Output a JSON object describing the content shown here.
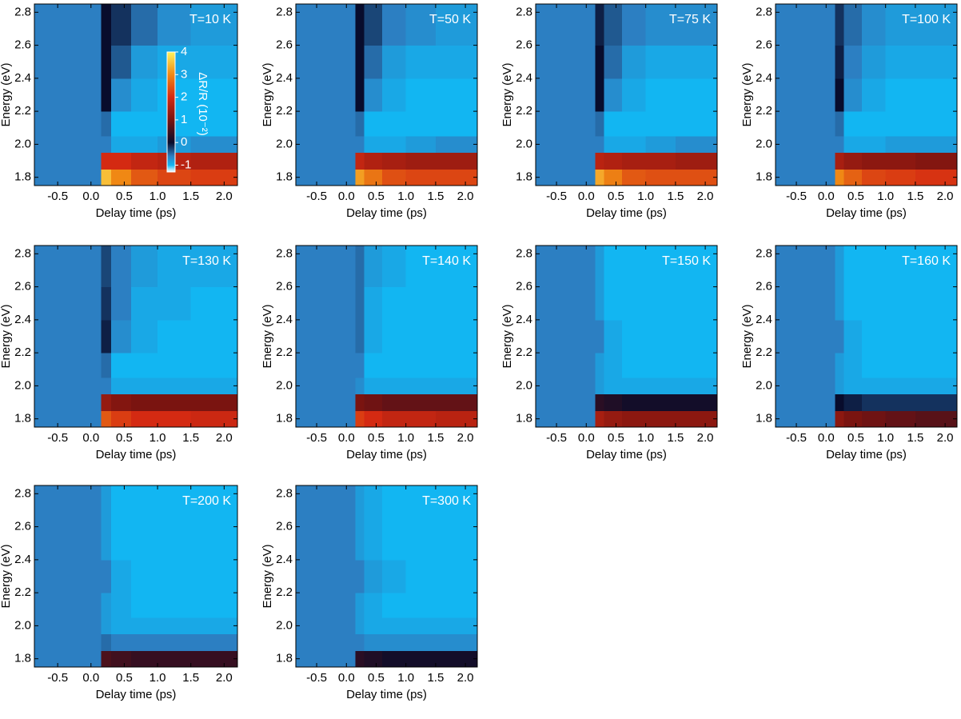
{
  "chart_data": [
    {
      "type": "heatmap",
      "title": "T=10 K",
      "xlabel": "Delay time (ps)",
      "ylabel": "Energy (eV)",
      "xlim": [
        -0.85,
        2.2
      ],
      "ylim": [
        1.75,
        2.85
      ],
      "xticks": [
        -0.5,
        {
          "value": 0,
          "label": "0.0"
        },
        0.5,
        {
          "value": 1,
          "label": "1.0"
        },
        1.5,
        {
          "value": 2,
          "label": "2.0"
        }
      ],
      "yticks": [
        1.8,
        {
          "value": 2,
          "label": "2.0"
        },
        2.2,
        2.4,
        2.6,
        2.8
      ],
      "xbins": [
        -0.85,
        0.15,
        0.3,
        0.6,
        1.0,
        1.5,
        2.2
      ],
      "ybins": [
        1.75,
        1.85,
        1.95,
        2.05,
        2.2,
        2.4,
        2.6,
        2.85
      ],
      "values": [
        [
          -0.6,
          3.5,
          3,
          2.5,
          2.3,
          2.2
        ],
        [
          -0.6,
          2,
          2,
          1.8,
          1.7,
          1.6
        ],
        [
          -0.6,
          -0.6,
          -0.9,
          -0.9,
          -0.8,
          -0.7
        ],
        [
          -0.6,
          -0.5,
          -1,
          -1,
          -1,
          -1
        ],
        [
          -0.6,
          0,
          -0.7,
          -0.9,
          -1,
          -1
        ],
        [
          -0.6,
          0,
          -0.4,
          -0.8,
          -0.9,
          -0.9
        ],
        [
          -0.6,
          0,
          -0.2,
          -0.5,
          -0.7,
          -0.8
        ]
      ],
      "colorbar_label": "ΔR/R (10⁻²)",
      "zlim": [
        -1.3,
        4
      ],
      "zticks": [
        -1,
        0,
        1,
        2,
        3,
        4
      ],
      "colorscale": [
        [
          -1.3,
          "#ffffff"
        ],
        [
          -1,
          "#12b6f2"
        ],
        [
          -0.6,
          "#2c7fc2"
        ],
        [
          0,
          "#080c2c"
        ],
        [
          1,
          "#7a1410"
        ],
        [
          2,
          "#d42a12"
        ],
        [
          3,
          "#f08814"
        ],
        [
          4,
          "#fff45c"
        ]
      ]
    },
    {
      "type": "heatmap",
      "title": "T=50 K",
      "xlabel": "Delay time (ps)",
      "ylabel": "Energy (eV)",
      "xlim": [
        -0.85,
        2.2
      ],
      "ylim": [
        1.75,
        2.85
      ],
      "xticks": [
        -0.5,
        {
          "value": 0,
          "label": "0.0"
        },
        0.5,
        {
          "value": 1,
          "label": "1.0"
        },
        1.5,
        {
          "value": 2,
          "label": "2.0"
        }
      ],
      "yticks": [
        1.8,
        {
          "value": 2,
          "label": "2.0"
        },
        2.2,
        2.4,
        2.6,
        2.8
      ],
      "xbins": [
        -0.85,
        0.15,
        0.3,
        0.6,
        1.0,
        1.5,
        2.2
      ],
      "ybins": [
        1.75,
        1.85,
        1.95,
        2.05,
        2.2,
        2.4,
        2.6,
        2.85
      ],
      "values": [
        [
          -0.6,
          3.2,
          2.8,
          2.4,
          2.3,
          2.3
        ],
        [
          -0.6,
          1.8,
          1.6,
          1.5,
          1.4,
          1.4
        ],
        [
          -0.6,
          -0.6,
          -0.9,
          -0.9,
          -0.8,
          -0.7
        ],
        [
          -0.6,
          -0.5,
          -1,
          -1,
          -1,
          -1
        ],
        [
          -0.6,
          0,
          -0.7,
          -0.9,
          -1,
          -1
        ],
        [
          -0.6,
          0,
          -0.5,
          -0.8,
          -0.9,
          -0.9
        ],
        [
          -0.6,
          0,
          -0.3,
          -0.6,
          -0.7,
          -0.8
        ]
      ]
    },
    {
      "type": "heatmap",
      "title": "T=75 K",
      "xlabel": "Delay time (ps)",
      "ylabel": "Energy (eV)",
      "xlim": [
        -0.85,
        2.2
      ],
      "ylim": [
        1.75,
        2.85
      ],
      "xticks": [
        -0.5,
        {
          "value": 0,
          "label": "0.0"
        },
        0.5,
        {
          "value": 1,
          "label": "1.0"
        },
        1.5,
        {
          "value": 2,
          "label": "2.0"
        }
      ],
      "yticks": [
        1.8,
        {
          "value": 2,
          "label": "2.0"
        },
        2.2,
        2.4,
        2.6,
        2.8
      ],
      "xbins": [
        -0.85,
        0.15,
        0.3,
        0.6,
        1.0,
        1.5,
        2.2
      ],
      "ybins": [
        1.75,
        1.85,
        1.95,
        2.05,
        2.2,
        2.4,
        2.6,
        2.85
      ],
      "values": [
        [
          -0.6,
          3.3,
          2.9,
          2.5,
          2.4,
          2.4
        ],
        [
          -0.6,
          1.7,
          1.6,
          1.5,
          1.5,
          1.4
        ],
        [
          -0.6,
          -0.6,
          -0.9,
          -0.9,
          -0.8,
          -0.7
        ],
        [
          -0.6,
          -0.5,
          -1,
          -1,
          -1,
          -1
        ],
        [
          -0.6,
          0,
          -0.7,
          -0.9,
          -1,
          -1
        ],
        [
          -0.6,
          0,
          -0.5,
          -0.8,
          -0.9,
          -0.9
        ],
        [
          -0.6,
          -0.1,
          -0.4,
          -0.6,
          -0.7,
          -0.7
        ]
      ]
    },
    {
      "type": "heatmap",
      "title": "T=100 K",
      "xlabel": "Delay time (ps)",
      "ylabel": "Energy (eV)",
      "xlim": [
        -0.85,
        2.2
      ],
      "ylim": [
        1.75,
        2.85
      ],
      "xticks": [
        -0.5,
        {
          "value": 0,
          "label": "0.0"
        },
        0.5,
        {
          "value": 1,
          "label": "1.0"
        },
        1.5,
        {
          "value": 2,
          "label": "2.0"
        }
      ],
      "yticks": [
        1.8,
        {
          "value": 2,
          "label": "2.0"
        },
        2.2,
        2.4,
        2.6,
        2.8
      ],
      "xbins": [
        -0.85,
        0.15,
        0.3,
        0.6,
        1.0,
        1.5,
        2.2
      ],
      "ybins": [
        1.75,
        1.85,
        1.95,
        2.05,
        2.2,
        2.4,
        2.6,
        2.85
      ],
      "values": [
        [
          -0.6,
          3,
          2.6,
          2.3,
          2.2,
          2.1
        ],
        [
          -0.6,
          1.5,
          1.3,
          1.2,
          1.2,
          1.1
        ],
        [
          -0.6,
          -0.6,
          -0.9,
          -0.9,
          -0.8,
          -0.8
        ],
        [
          -0.6,
          -0.5,
          -1,
          -1,
          -1,
          -1
        ],
        [
          -0.6,
          0,
          -0.7,
          -0.9,
          -1,
          -1
        ],
        [
          -0.6,
          -0.1,
          -0.6,
          -0.8,
          -0.9,
          -0.9
        ],
        [
          -0.6,
          -0.2,
          -0.5,
          -0.7,
          -0.8,
          -0.8
        ]
      ]
    },
    {
      "type": "heatmap",
      "title": "T=130 K",
      "xlabel": "Delay time (ps)",
      "ylabel": "Energy (eV)",
      "xlim": [
        -0.85,
        2.2
      ],
      "ylim": [
        1.75,
        2.85
      ],
      "xticks": [
        -0.5,
        {
          "value": 0,
          "label": "0.0"
        },
        0.5,
        {
          "value": 1,
          "label": "1.0"
        },
        1.5,
        {
          "value": 2,
          "label": "2.0"
        }
      ],
      "yticks": [
        1.8,
        {
          "value": 2,
          "label": "2.0"
        },
        2.2,
        2.4,
        2.6,
        2.8
      ],
      "xbins": [
        -0.85,
        0.15,
        0.3,
        0.6,
        1.0,
        1.5,
        2.2
      ],
      "ybins": [
        1.75,
        1.85,
        1.95,
        2.05,
        2.2,
        2.4,
        2.6,
        2.85
      ],
      "values": [
        [
          -0.6,
          2.5,
          2.2,
          2,
          2,
          1.9
        ],
        [
          -0.6,
          1.3,
          1.1,
          1,
          1,
          1
        ],
        [
          -0.6,
          -0.6,
          -0.9,
          -0.9,
          -0.9,
          -0.9
        ],
        [
          -0.6,
          -0.5,
          -1,
          -1,
          -1,
          -1
        ],
        [
          -0.6,
          -0.1,
          -0.7,
          -0.9,
          -1,
          -1
        ],
        [
          -0.6,
          -0.2,
          -0.6,
          -0.9,
          -0.9,
          -1
        ],
        [
          -0.6,
          -0.3,
          -0.6,
          -0.8,
          -0.9,
          -0.9
        ]
      ]
    },
    {
      "type": "heatmap",
      "title": "T=140 K",
      "xlabel": "Delay time (ps)",
      "ylabel": "Energy (eV)",
      "xlim": [
        -0.85,
        2.2
      ],
      "ylim": [
        1.75,
        2.85
      ],
      "xticks": [
        -0.5,
        {
          "value": 0,
          "label": "0.0"
        },
        0.5,
        {
          "value": 1,
          "label": "1.0"
        },
        1.5,
        {
          "value": 2,
          "label": "2.0"
        }
      ],
      "yticks": [
        1.8,
        {
          "value": 2,
          "label": "2.0"
        },
        2.2,
        2.4,
        2.6,
        2.8
      ],
      "xbins": [
        -0.85,
        0.15,
        0.3,
        0.6,
        1.0,
        1.5,
        2.2
      ],
      "ybins": [
        1.75,
        1.85,
        1.95,
        2.05,
        2.2,
        2.4,
        2.6,
        2.85
      ],
      "values": [
        [
          -0.6,
          2.2,
          2,
          1.8,
          1.8,
          1.7
        ],
        [
          -0.6,
          1,
          0.9,
          0.8,
          0.8,
          0.8
        ],
        [
          -0.6,
          -0.7,
          -0.9,
          -0.9,
          -0.9,
          -0.9
        ],
        [
          -0.6,
          -0.6,
          -1,
          -1,
          -1,
          -1
        ],
        [
          -0.6,
          -0.5,
          -0.9,
          -1,
          -1,
          -1
        ],
        [
          -0.6,
          -0.5,
          -0.9,
          -1,
          -1,
          -1
        ],
        [
          -0.6,
          -0.5,
          -0.8,
          -0.9,
          -1,
          -1
        ]
      ]
    },
    {
      "type": "heatmap",
      "title": "T=150 K",
      "xlabel": "Delay time (ps)",
      "ylabel": "Energy (eV)",
      "xlim": [
        -0.85,
        2.2
      ],
      "ylim": [
        1.75,
        2.85
      ],
      "xticks": [
        -0.5,
        {
          "value": 0,
          "label": "0.0"
        },
        0.5,
        {
          "value": 1,
          "label": "1.0"
        },
        1.5,
        {
          "value": 2,
          "label": "2.0"
        }
      ],
      "yticks": [
        1.8,
        {
          "value": 2,
          "label": "2.0"
        },
        2.2,
        2.4,
        2.6,
        2.8
      ],
      "xbins": [
        -0.85,
        0.15,
        0.3,
        0.6,
        1.0,
        1.5,
        2.2
      ],
      "ybins": [
        1.75,
        1.85,
        1.95,
        2.05,
        2.2,
        2.4,
        2.6,
        2.85
      ],
      "values": [
        [
          -0.6,
          1.5,
          1.3,
          1.2,
          1.2,
          1.2
        ],
        [
          -0.6,
          0.3,
          0.2,
          0.1,
          0.1,
          0.1
        ],
        [
          -0.6,
          -0.8,
          -0.9,
          -0.9,
          -0.9,
          -0.9
        ],
        [
          -0.6,
          -0.8,
          -0.9,
          -1,
          -1,
          -1
        ],
        [
          -0.6,
          -0.6,
          -0.9,
          -1,
          -1,
          -1
        ],
        [
          -0.6,
          -0.8,
          -1,
          -1,
          -1,
          -1
        ],
        [
          -0.6,
          -0.8,
          -1,
          -1,
          -1,
          -1
        ]
      ]
    },
    {
      "type": "heatmap",
      "title": "T=160 K",
      "xlabel": "Delay time (ps)",
      "ylabel": "Energy (eV)",
      "xlim": [
        -0.85,
        2.2
      ],
      "ylim": [
        1.75,
        2.85
      ],
      "xticks": [
        -0.5,
        {
          "value": 0,
          "label": "0.0"
        },
        0.5,
        {
          "value": 1,
          "label": "1.0"
        },
        1.5,
        {
          "value": 2,
          "label": "2.0"
        }
      ],
      "yticks": [
        1.8,
        {
          "value": 2,
          "label": "2.0"
        },
        2.2,
        2.4,
        2.6,
        2.8
      ],
      "xbins": [
        -0.85,
        0.15,
        0.3,
        0.6,
        1.0,
        1.5,
        2.2
      ],
      "ybins": [
        1.75,
        1.85,
        1.95,
        2.05,
        2.2,
        2.4,
        2.6,
        2.85
      ],
      "values": [
        [
          -0.6,
          1.2,
          1,
          0.9,
          0.8,
          0.7
        ],
        [
          -0.6,
          0,
          -0.1,
          -0.2,
          -0.2,
          -0.2
        ],
        [
          -0.6,
          -0.8,
          -0.9,
          -0.9,
          -0.9,
          -0.9
        ],
        [
          -0.6,
          -0.8,
          -0.9,
          -1,
          -1,
          -1
        ],
        [
          -0.6,
          -0.6,
          -0.9,
          -1,
          -1,
          -1
        ],
        [
          -0.6,
          -0.8,
          -1,
          -1,
          -1,
          -1
        ],
        [
          -0.6,
          -0.8,
          -1,
          -1,
          -1,
          -1
        ]
      ]
    },
    {
      "type": "heatmap",
      "title": "T=200 K",
      "xlabel": "Delay time (ps)",
      "ylabel": "Energy (eV)",
      "xlim": [
        -0.85,
        2.2
      ],
      "ylim": [
        1.75,
        2.85
      ],
      "xticks": [
        -0.5,
        {
          "value": 0,
          "label": "0.0"
        },
        0.5,
        {
          "value": 1,
          "label": "1.0"
        },
        1.5,
        {
          "value": 2,
          "label": "2.0"
        }
      ],
      "yticks": [
        1.8,
        {
          "value": 2,
          "label": "2.0"
        },
        2.2,
        2.4,
        2.6,
        2.8
      ],
      "xbins": [
        -0.85,
        0.15,
        0.3,
        0.6,
        1.0,
        1.5,
        2.2
      ],
      "ybins": [
        1.75,
        1.85,
        1.95,
        2.05,
        2.2,
        2.4,
        2.6,
        2.85
      ],
      "values": [
        [
          -0.6,
          0.6,
          0.5,
          0.4,
          0.4,
          0.4
        ],
        [
          -0.6,
          -0.5,
          -0.6,
          -0.6,
          -0.6,
          -0.6
        ],
        [
          -0.6,
          -0.8,
          -0.9,
          -0.9,
          -0.9,
          -0.9
        ],
        [
          -0.6,
          -0.8,
          -0.9,
          -1,
          -1,
          -1
        ],
        [
          -0.6,
          -0.6,
          -0.9,
          -1,
          -1,
          -1
        ],
        [
          -0.6,
          -0.8,
          -1,
          -1,
          -1,
          -1
        ],
        [
          -0.6,
          -0.8,
          -1,
          -1,
          -1,
          -1
        ]
      ]
    },
    {
      "type": "heatmap",
      "title": "T=300 K",
      "xlabel": "Delay time (ps)",
      "ylabel": "Energy (eV)",
      "xlim": [
        -0.85,
        2.2
      ],
      "ylim": [
        1.75,
        2.85
      ],
      "xticks": [
        -0.5,
        {
          "value": 0,
          "label": "0.0"
        },
        0.5,
        {
          "value": 1,
          "label": "1.0"
        },
        1.5,
        {
          "value": 2,
          "label": "2.0"
        }
      ],
      "yticks": [
        1.8,
        {
          "value": 2,
          "label": "2.0"
        },
        2.2,
        2.4,
        2.6,
        2.8
      ],
      "xbins": [
        -0.85,
        0.15,
        0.3,
        0.6,
        1.0,
        1.5,
        2.2
      ],
      "ybins": [
        1.75,
        1.85,
        1.95,
        2.05,
        2.2,
        2.4,
        2.6,
        2.85
      ],
      "values": [
        [
          -0.6,
          0.3,
          0.2,
          0.1,
          0.1,
          0.1
        ],
        [
          -0.6,
          -0.6,
          -0.7,
          -0.7,
          -0.7,
          -0.7
        ],
        [
          -0.6,
          -0.8,
          -0.9,
          -0.9,
          -0.9,
          -0.9
        ],
        [
          -0.6,
          -0.8,
          -0.9,
          -1,
          -1,
          -1
        ],
        [
          -0.6,
          -0.6,
          -0.8,
          -0.9,
          -1,
          -1
        ],
        [
          -0.6,
          -0.8,
          -0.9,
          -1,
          -1,
          -1
        ],
        [
          -0.6,
          -0.8,
          -0.9,
          -1,
          -1,
          -1
        ]
      ]
    }
  ]
}
